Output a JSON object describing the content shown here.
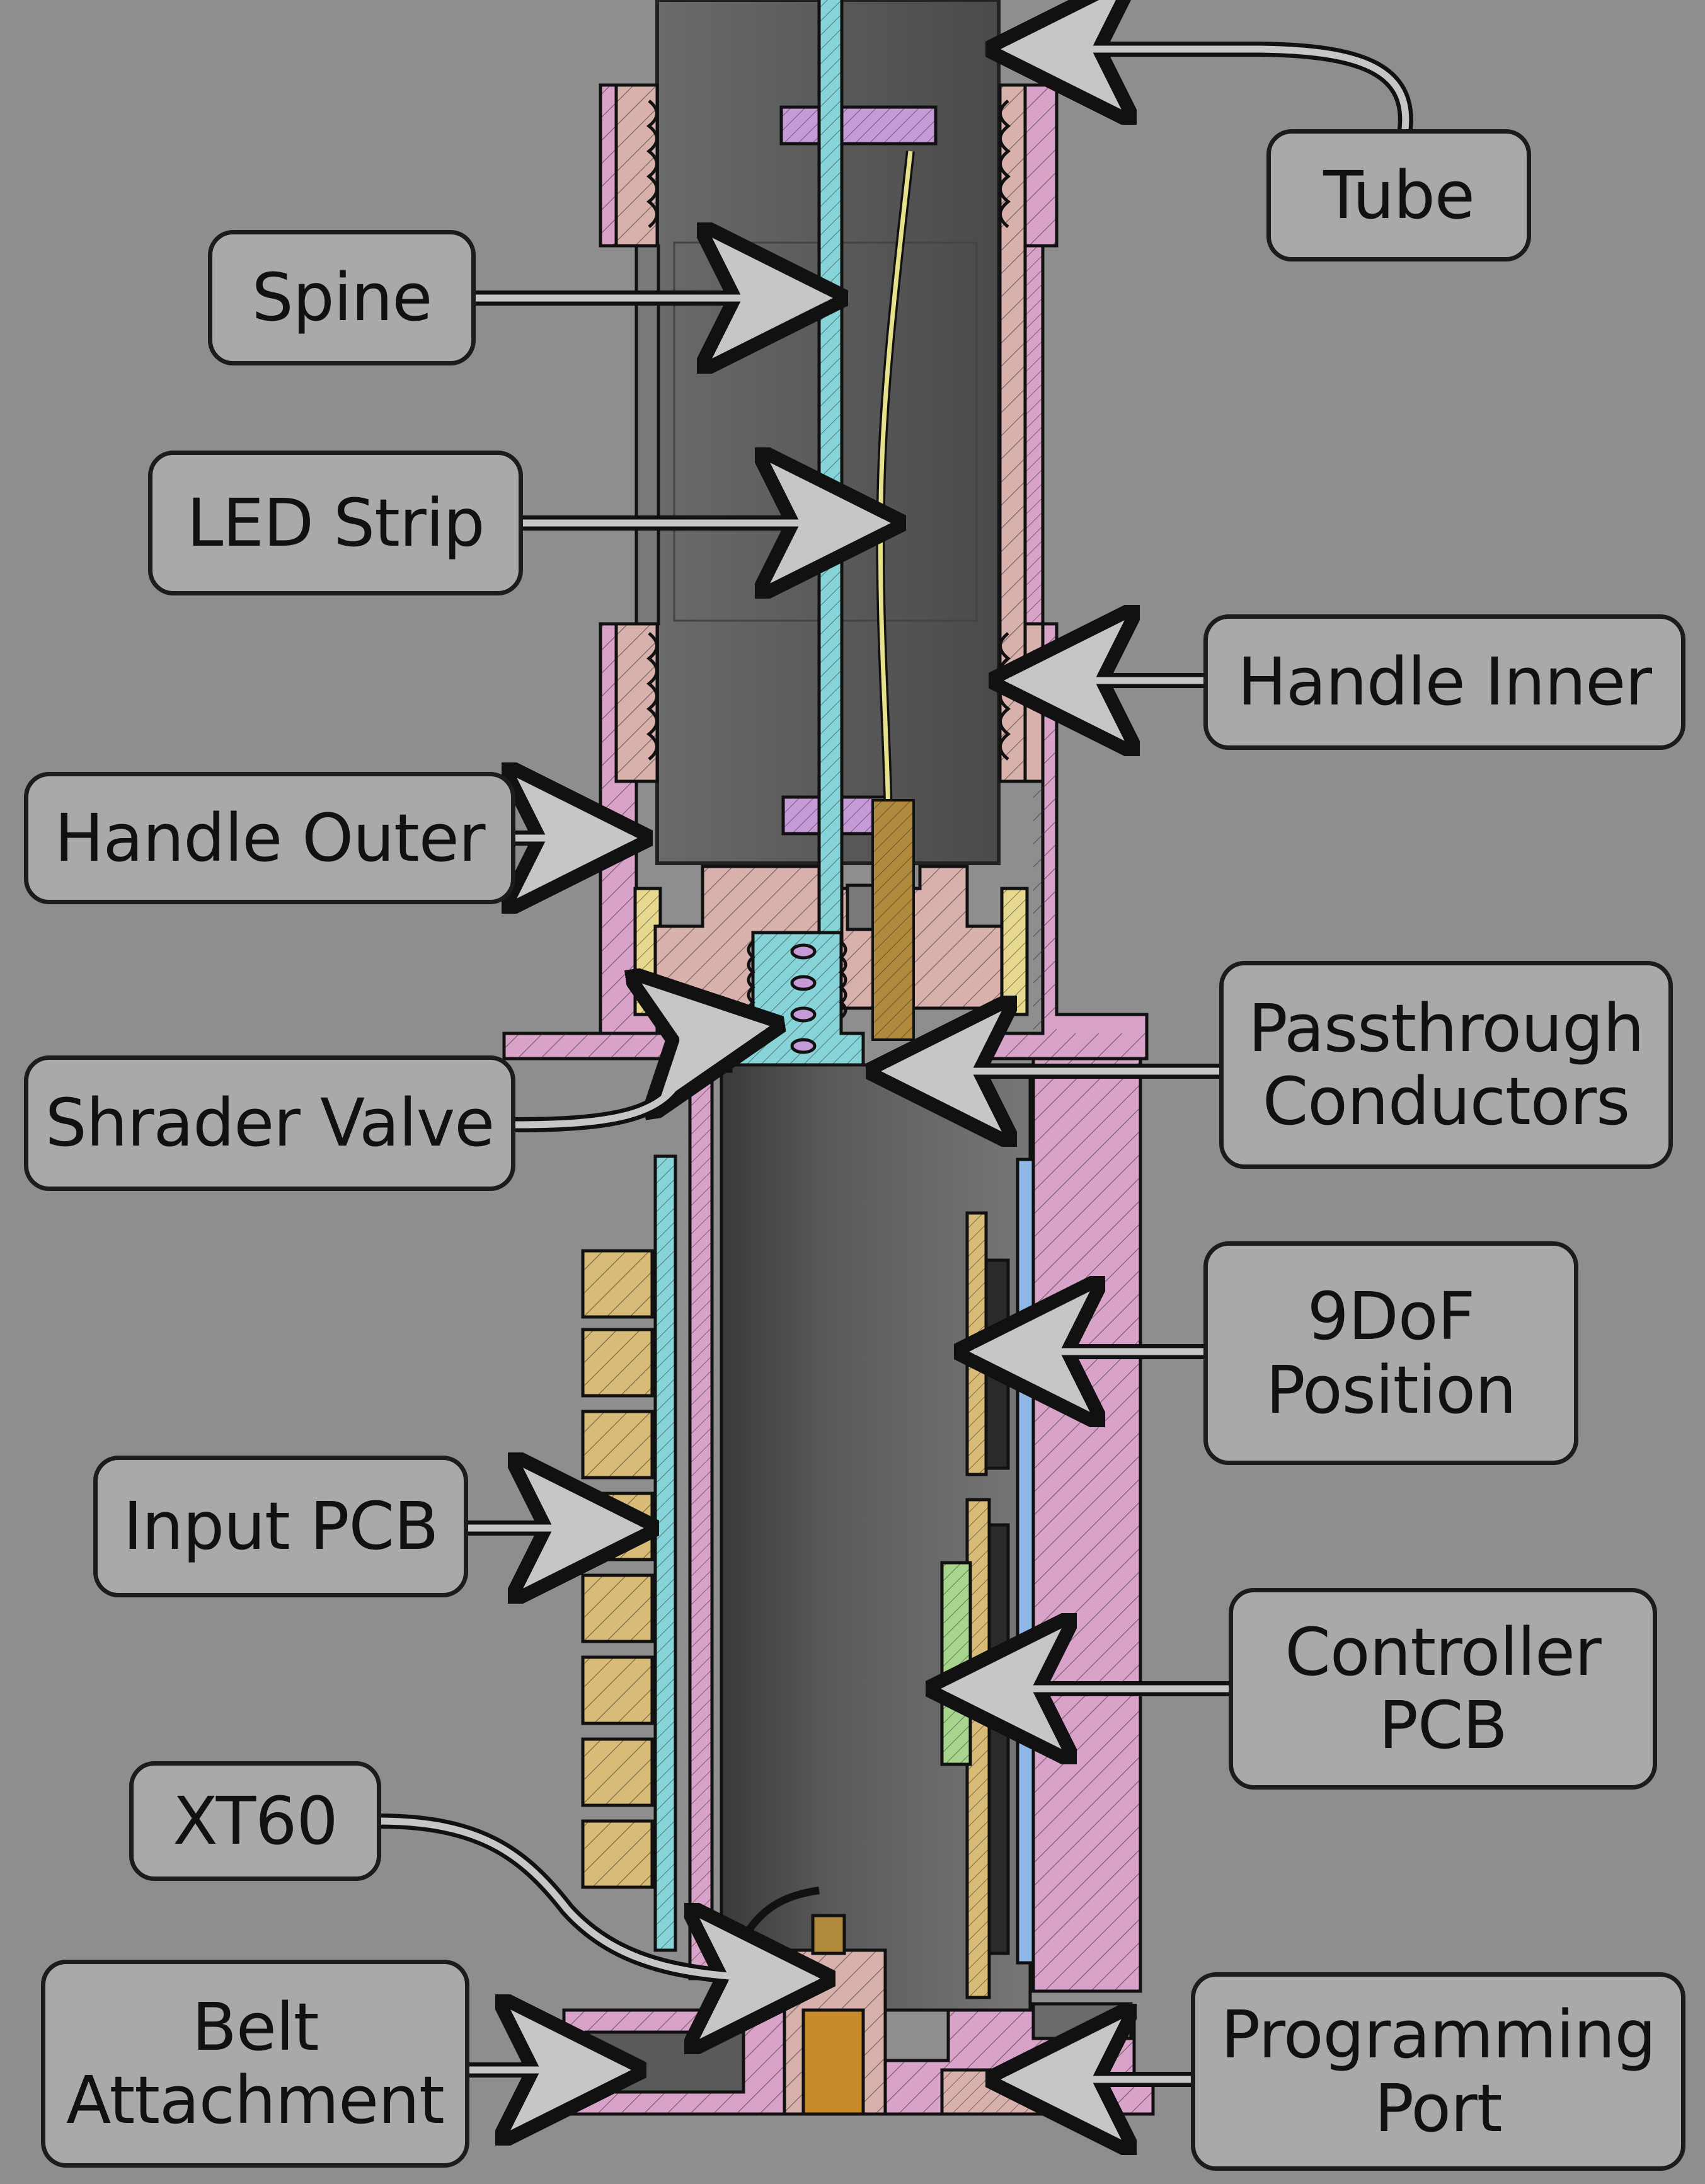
{
  "labels": {
    "tube": "Tube",
    "spine": "Spine",
    "led_strip": "LED Strip",
    "handle_inner": "Handle Inner",
    "handle_outer": "Handle Outer",
    "shrader_valve": "Shrader Valve",
    "passthrough_conductors": {
      "line1": "Passthrough",
      "line2": "Conductors"
    },
    "nine_dof_position": {
      "line1": "9DoF",
      "line2": "Position"
    },
    "input_pcb": "Input PCB",
    "controller_pcb": {
      "line1": "Controller",
      "line2": "PCB"
    },
    "xt60": "XT60",
    "belt_attachment": {
      "line1": "Belt",
      "line2": "Attachment"
    },
    "programming_port": {
      "line1": "Programming",
      "line2": "Port"
    }
  },
  "colors": {
    "background": "#8e8e8e",
    "callout_fill": "#a9a9a9",
    "outline": "#1c1c1c",
    "handle_pink": "#d9a2c9",
    "handle_inner_rose": "#d8b1ac",
    "spine_cyan": "#86d3d8",
    "pcb_tan": "#d9bb78",
    "controller_green": "#a7d58e",
    "blue_strip": "#8fb7e6",
    "conductor_gold": "#b08a3c",
    "valve_orange": "#e8a586",
    "tube_dark": "#505050"
  }
}
